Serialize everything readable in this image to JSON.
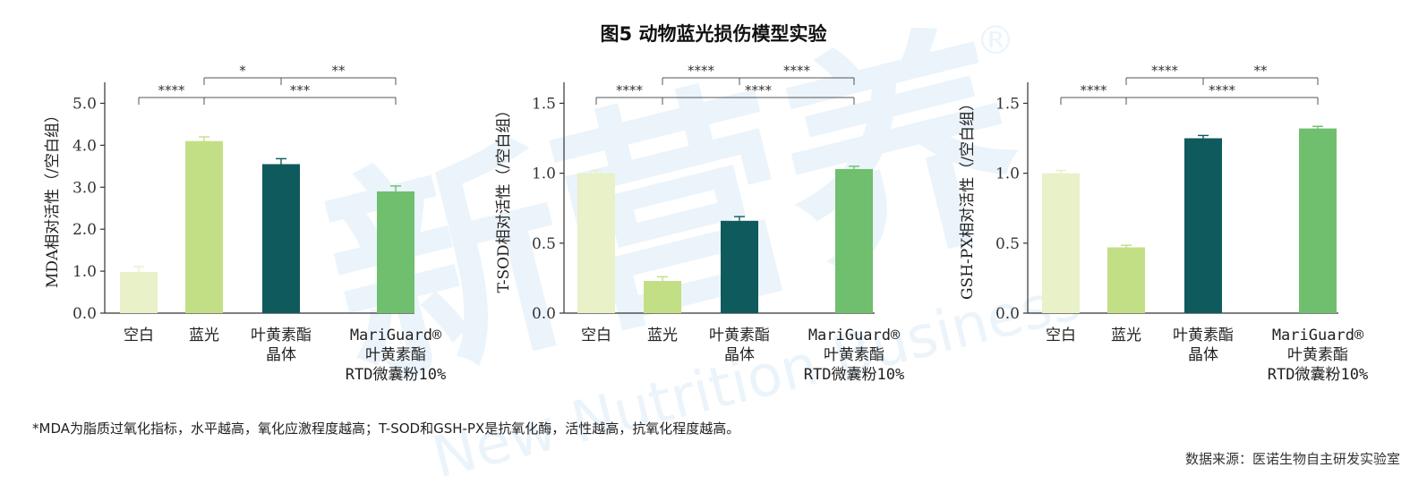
{
  "title": "图5 动物蓝光损伤模型实验",
  "footnote": "*MDA为脂质过氧化指标，水平越高，氧化应激程度越高；T-SOD和GSH-PX是抗氧化酶，活性越高，抗氧化程度越高。",
  "source": "数据来源：医诺生物自主研发实验室",
  "watermark": {
    "cn": "新营养",
    "en": "New Nutrition Business",
    "mark": "®"
  },
  "colors": [
    "#e8f1c8",
    "#c3df85",
    "#0e5a5c",
    "#6fbf6e"
  ],
  "chart_data": [
    {
      "type": "bar",
      "ylabel": "MDA相对活性（/空白组）",
      "ylim": [
        0,
        5.5
      ],
      "yticks": [
        "0.0",
        "1.0",
        "2.0",
        "3.0",
        "4.0",
        "5.0"
      ],
      "categories": [
        [
          "空白"
        ],
        [
          "蓝光"
        ],
        [
          "叶黄素酯",
          "晶体"
        ],
        [
          "MariGuard®",
          "叶黄素酯",
          "RTD微囊粉10%"
        ]
      ],
      "values": [
        0.98,
        4.1,
        3.55,
        2.9
      ],
      "errors": [
        0.13,
        0.1,
        0.13,
        0.13
      ],
      "significance": [
        {
          "from": 0,
          "to": 1,
          "label": "****"
        },
        {
          "from": 1,
          "to": 2,
          "label": "*"
        },
        {
          "from": 2,
          "to": 3,
          "label": "**"
        },
        {
          "from": 1,
          "to": 3,
          "label": "***"
        }
      ]
    },
    {
      "type": "bar",
      "ylabel": "T-SOD相对活性（/空白组）",
      "ylim": [
        0,
        1.65
      ],
      "yticks": [
        "0.0",
        "0.5",
        "1.0",
        "1.5"
      ],
      "categories": [
        [
          "空白"
        ],
        [
          "蓝光"
        ],
        [
          "叶黄素酯",
          "晶体"
        ],
        [
          "MariGuard®",
          "叶黄素酯",
          "RTD微囊粉10%"
        ]
      ],
      "values": [
        1.0,
        0.23,
        0.66,
        1.03
      ],
      "errors": [
        0.02,
        0.03,
        0.03,
        0.02
      ],
      "significance": [
        {
          "from": 0,
          "to": 1,
          "label": "****"
        },
        {
          "from": 1,
          "to": 2,
          "label": "****"
        },
        {
          "from": 2,
          "to": 3,
          "label": "****"
        },
        {
          "from": 1,
          "to": 3,
          "label": "****"
        }
      ]
    },
    {
      "type": "bar",
      "ylabel": "GSH-PX相对活性（/空白组）",
      "ylim": [
        0,
        1.65
      ],
      "yticks": [
        "0.0",
        "0.5",
        "1.0",
        "1.5"
      ],
      "categories": [
        [
          "空白"
        ],
        [
          "蓝光"
        ],
        [
          "叶黄素酯",
          "晶体"
        ],
        [
          "MariGuard®",
          "叶黄素酯",
          "RTD微囊粉10%"
        ]
      ],
      "values": [
        1.0,
        0.47,
        1.25,
        1.32
      ],
      "errors": [
        0.02,
        0.015,
        0.02,
        0.015
      ],
      "significance": [
        {
          "from": 0,
          "to": 1,
          "label": "****"
        },
        {
          "from": 1,
          "to": 2,
          "label": "****"
        },
        {
          "from": 2,
          "to": 3,
          "label": "**"
        },
        {
          "from": 1,
          "to": 3,
          "label": "****"
        }
      ]
    }
  ]
}
